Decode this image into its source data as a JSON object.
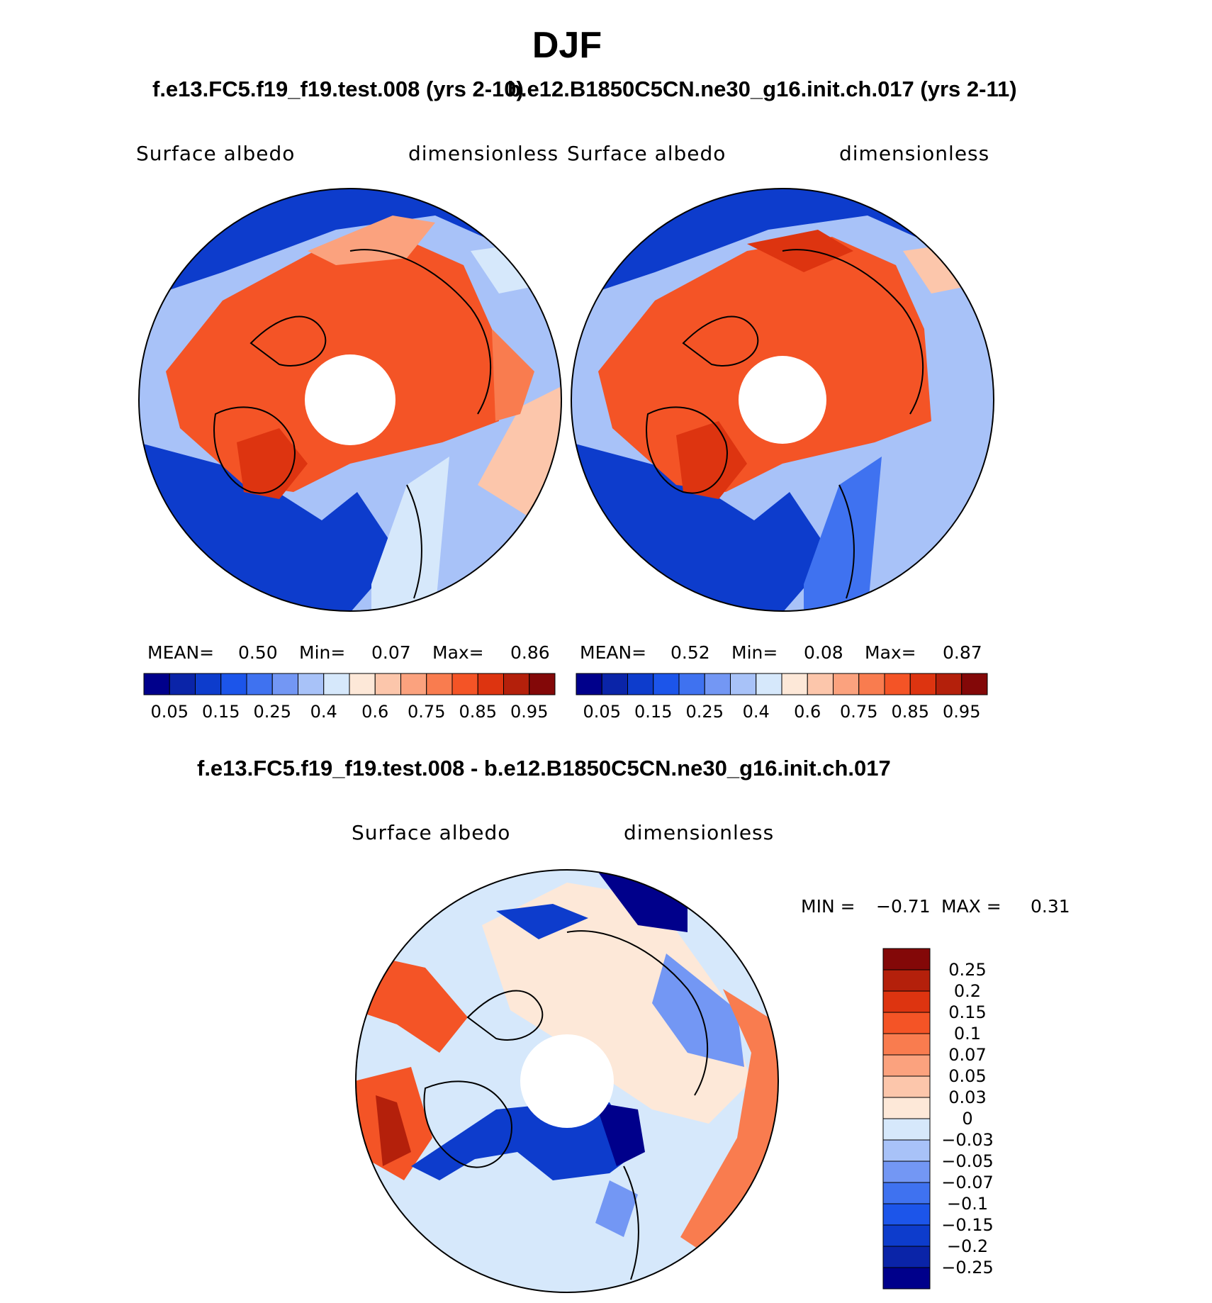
{
  "figure": {
    "title": "DJF",
    "left_case": "f.e13.FC5.f19_f19.test.008 (yrs 2-10)",
    "right_case": "b.e12.B1850C5CN.ne30_g16.init.ch.017 (yrs 2-11)",
    "diff_case": "f.e13.FC5.f19_f19.test.008 - b.e12.B1850C5CN.ne30_g16.init.ch.017"
  },
  "panels": [
    {
      "variable": "Surface  albedo",
      "units": "dimensionless",
      "mean_label": "MEAN=",
      "mean": "0.50",
      "min_label": "Min=",
      "min": "0.07",
      "max_label": "Max=",
      "max": "0.86"
    },
    {
      "variable": "Surface  albedo",
      "units": "dimensionless",
      "mean_label": "MEAN=",
      "mean": "0.52",
      "min_label": "Min=",
      "min": "0.08",
      "max_label": "Max=",
      "max": "0.87"
    }
  ],
  "diff_panel": {
    "variable": "Surface  albedo",
    "units": "dimensionless",
    "min_label": "MIN =",
    "min": "−0.71",
    "max_label": "MAX =",
    "max": "0.31"
  },
  "colorbar_abs": {
    "tick_labels": [
      "0.05",
      "0.15",
      "0.25",
      "0.4",
      "0.6",
      "0.75",
      "0.85",
      "0.95"
    ],
    "colors": [
      "#00008b",
      "#0a24a8",
      "#0d3ccc",
      "#1c55ea",
      "#3f72f0",
      "#7397f4",
      "#a8c2f8",
      "#d6e8fb",
      "#fde8d8",
      "#fcc6ab",
      "#fba27e",
      "#f97c4f",
      "#f45426",
      "#dd3410",
      "#b4200b",
      "#830808"
    ]
  },
  "colorbar_diff": {
    "tick_labels": [
      "0.25",
      "0.2",
      "0.15",
      "0.1",
      "0.07",
      "0.05",
      "0.03",
      "0",
      "−0.03",
      "−0.05",
      "−0.07",
      "−0.1",
      "−0.15",
      "−0.2",
      "−0.25"
    ],
    "colors": [
      "#830808",
      "#b4200b",
      "#dd3410",
      "#f45426",
      "#f97c4f",
      "#fba27e",
      "#fcc6ab",
      "#fde8d8",
      "#d6e8fb",
      "#a8c2f8",
      "#7397f4",
      "#3f72f0",
      "#1c55ea",
      "#0d3ccc",
      "#0a24a8",
      "#00008b"
    ]
  }
}
